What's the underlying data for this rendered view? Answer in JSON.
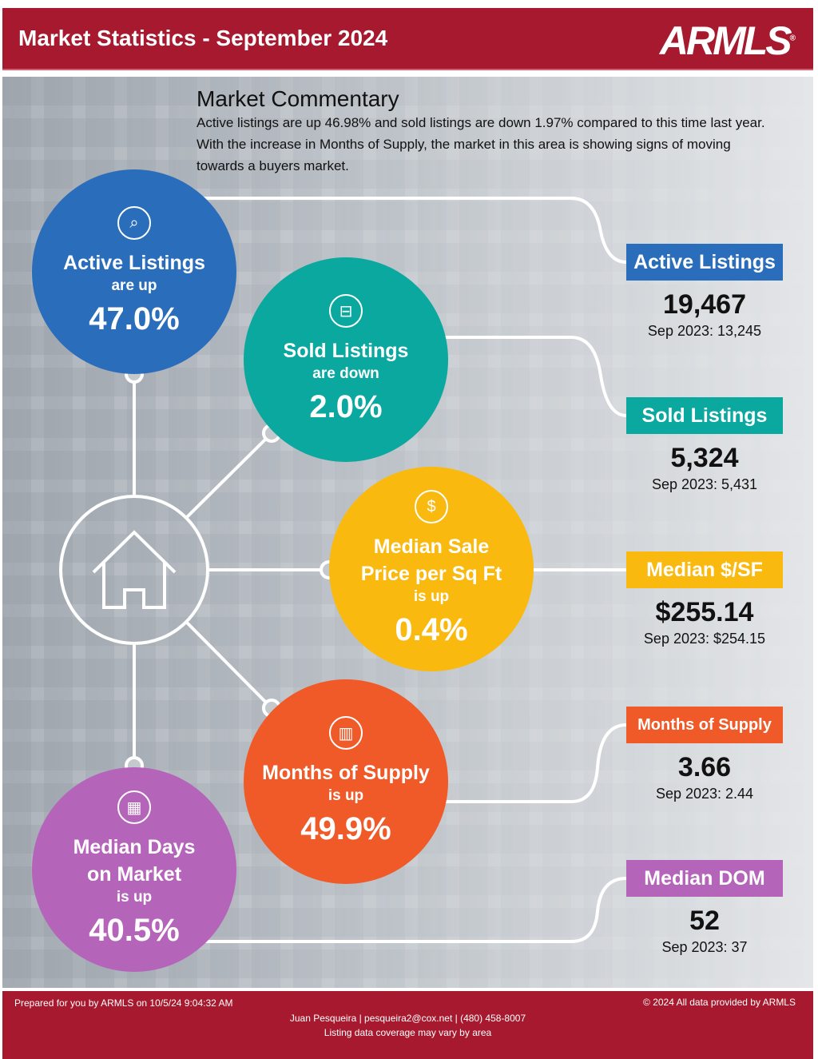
{
  "header": {
    "title": "Market Statistics - September 2024",
    "logo": "ARMLS"
  },
  "commentary": {
    "title": "Market Commentary",
    "text": "Active listings are up 46.98% and sold listings are down 1.97% compared to this time last year. With the increase in Months of Supply, the market in this area is showing signs of moving towards a buyers market."
  },
  "colors": {
    "brand": "#a6192e",
    "active": "#2a6ebb",
    "sold": "#0aa89e",
    "price": "#f9b90f",
    "supply": "#f05a28",
    "dom": "#b565b9"
  },
  "circles": [
    {
      "label": "Active Listings",
      "direction": "are up",
      "percent": "47.0%",
      "icon": "house-search-icon"
    },
    {
      "label": "Sold Listings",
      "direction": "are down",
      "percent": "2.0%",
      "icon": "sign-icon"
    },
    {
      "label": "Median Sale Price per Sq Ft",
      "direction": "is up",
      "percent": "0.4%",
      "icon": "house-dollar-icon"
    },
    {
      "label": "Months of Supply",
      "direction": "is up",
      "percent": "49.9%",
      "icon": "chart-icon"
    },
    {
      "label": "Median Days on Market",
      "direction": "is up",
      "percent": "40.5%",
      "icon": "calendar-icon"
    }
  ],
  "stats": [
    {
      "label": "Active Listings",
      "value": "19,467",
      "previous": "Sep 2023: 13,245"
    },
    {
      "label": "Sold Listings",
      "value": "5,324",
      "previous": "Sep 2023: 5,431"
    },
    {
      "label": "Median $/SF",
      "value": "$255.14",
      "previous": "Sep 2023: $254.15"
    },
    {
      "label": "Months of Supply",
      "value": "3.66",
      "previous": "Sep 2023: 2.44"
    },
    {
      "label": "Median DOM",
      "value": "52",
      "previous": "Sep 2023: 37"
    }
  ],
  "footer": {
    "prepared": "Prepared for you by ARMLS on 10/5/24 9:04:32 AM",
    "copyright": "© 2024 All data provided by ARMLS",
    "contact": "Juan Pesqueira | pesqueira2@cox.net | (480) 458-8007",
    "note": "Listing data coverage may vary by area"
  }
}
